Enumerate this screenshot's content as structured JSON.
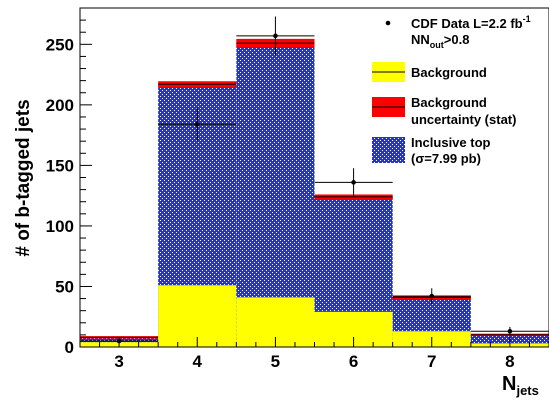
{
  "chart_data": {
    "type": "bar",
    "categories": [
      "3",
      "4",
      "5",
      "6",
      "7",
      "8"
    ],
    "series": [
      {
        "name": "Background",
        "values": [
          4,
          51,
          41,
          29,
          13,
          3
        ]
      },
      {
        "name": "Inclusive top",
        "values": [
          8,
          217,
          251,
          124,
          41,
          10
        ]
      },
      {
        "name": "Background uncertainty (stat)",
        "values": [
          2,
          5,
          7,
          4,
          3,
          2
        ]
      },
      {
        "name": "CDF Data L=2.2 fb-1 NNout>0.8",
        "values": [
          5,
          184,
          257,
          136,
          42,
          13
        ],
        "errors": [
          2.2,
          13.6,
          16,
          11.7,
          6.5,
          3.6
        ]
      }
    ],
    "ylabel": "# of b-tagged jets",
    "xlabel": "N",
    "xlabel_sub": "jets",
    "ylim": [
      0,
      280
    ],
    "xlim": [
      2.5,
      8.5
    ],
    "y_ticks": [
      "0",
      "50",
      "100",
      "150",
      "200",
      "250"
    ],
    "legend": {
      "placement": "top-right",
      "data_line1": "CDF Data L=2.2 fb",
      "data_line1_sup": "-1",
      "data_line2_a": "NN",
      "data_line2_sub": "out",
      "data_line2_b": ">0.8",
      "background": "Background",
      "uncert_line1": "Background",
      "uncert_line2": "uncertainty (stat)",
      "top_line1": "Inclusive top",
      "top_line2": "(σ=7.99 pb)"
    },
    "colors": {
      "background_fill": "#ffff00",
      "uncertainty_fill": "#ff0000",
      "top_fill": "#2233dd",
      "top_pattern_dot": "#ffffff",
      "data_marker": "#000000"
    },
    "grid": false
  }
}
